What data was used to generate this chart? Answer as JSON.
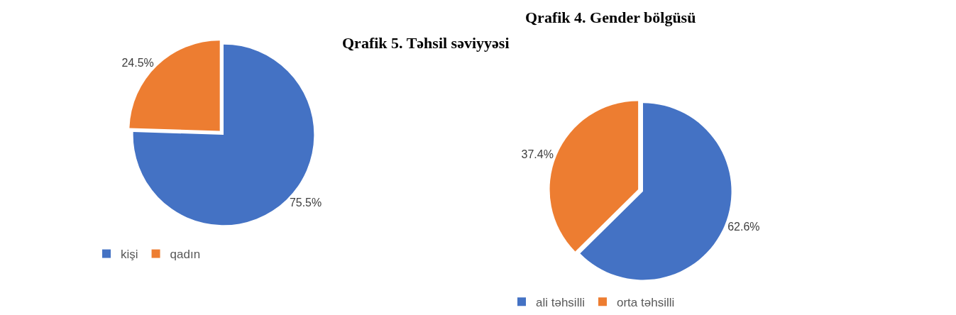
{
  "chart_data": [
    {
      "type": "pie",
      "title": "Qrafik 4. Gender bölgüsü",
      "categories": [
        "kişi",
        "qadın"
      ],
      "values": [
        75.5,
        24.5
      ],
      "colors": [
        "#4472c4",
        "#ed7d31"
      ],
      "value_labels": [
        "75.5%",
        "24.5%"
      ],
      "legend": "bottom"
    },
    {
      "type": "pie",
      "title": "Qrafik 5. Təhsil səviyyəsi",
      "categories": [
        "ali təhsilli",
        "orta təhsilli"
      ],
      "values": [
        62.6,
        37.4
      ],
      "colors": [
        "#4472c4",
        "#ed7d31"
      ],
      "value_labels": [
        "62.6%",
        "37.4%"
      ],
      "legend": "bottom"
    }
  ]
}
